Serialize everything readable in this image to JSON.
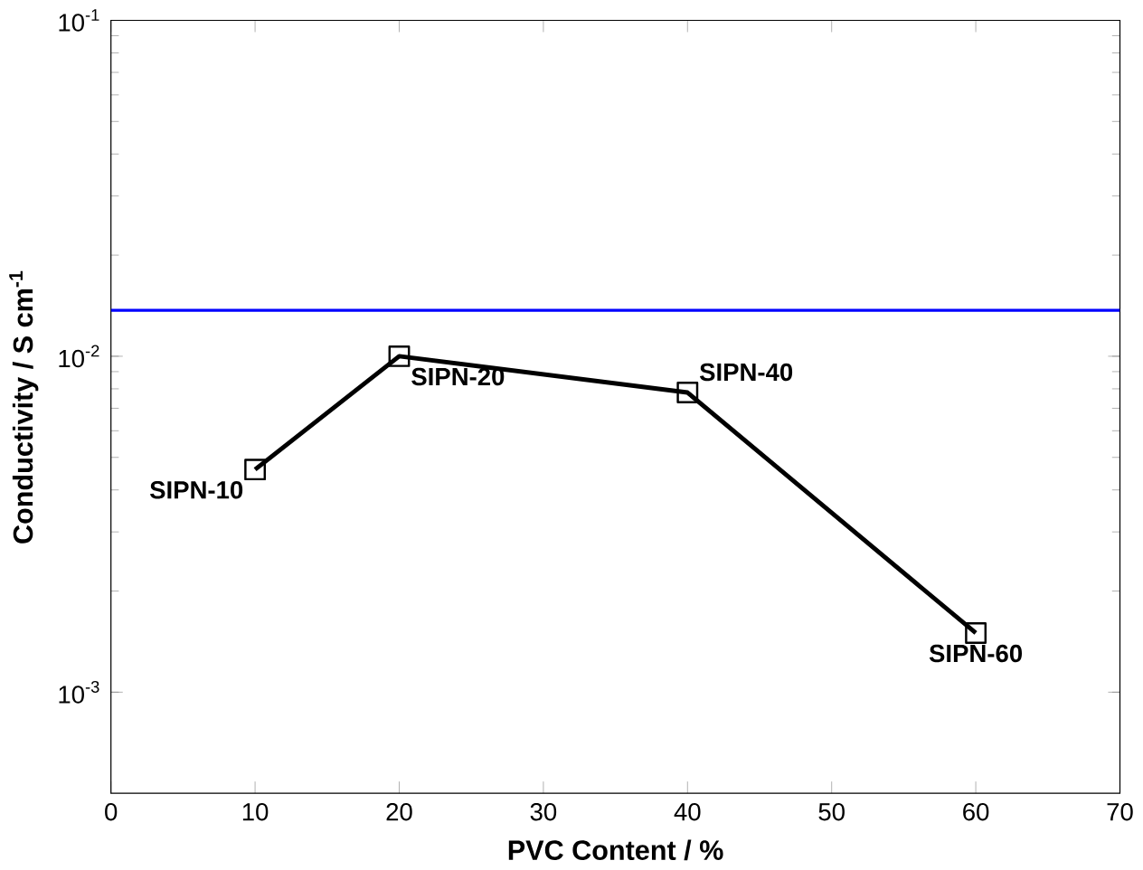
{
  "chart_data": {
    "type": "line",
    "xlabel": "PVC Content / %",
    "ylabel": "Conductivity / S cm$^{-1}$",
    "x": [
      10,
      20,
      40,
      60
    ],
    "series": [
      {
        "color": "#000000",
        "values": [
          0.0046,
          0.01,
          0.0078,
          0.0015
        ]
      }
    ],
    "marker": "square",
    "line_style": "solid",
    "log": "y",
    "xlim": [
      0,
      70
    ],
    "xticks": [
      0,
      10,
      20,
      30,
      40,
      50,
      60,
      70
    ],
    "ylim": [
      0.0005,
      0.1
    ],
    "yticks": [
      {
        "value": 0.001,
        "label": "10$^{-3}$"
      },
      {
        "value": 0.01,
        "label": "10$^{-2}$"
      },
      {
        "value": 0.1,
        "label": "10$^{-1}$"
      }
    ],
    "ref_lines": [
      {
        "axis": "y",
        "value": 0.0137,
        "color": "#0000ff"
      }
    ],
    "annotations": [
      {
        "text": "SIPN-10",
        "x": 10,
        "y": 0.0046
      },
      {
        "text": "SIPN-20",
        "x": 20,
        "y": 0.01
      },
      {
        "text": "SIPN-40",
        "x": 40,
        "y": 0.0078
      },
      {
        "text": "SIPN-60",
        "x": 60,
        "y": 0.0015
      }
    ],
    "grid": false
  }
}
